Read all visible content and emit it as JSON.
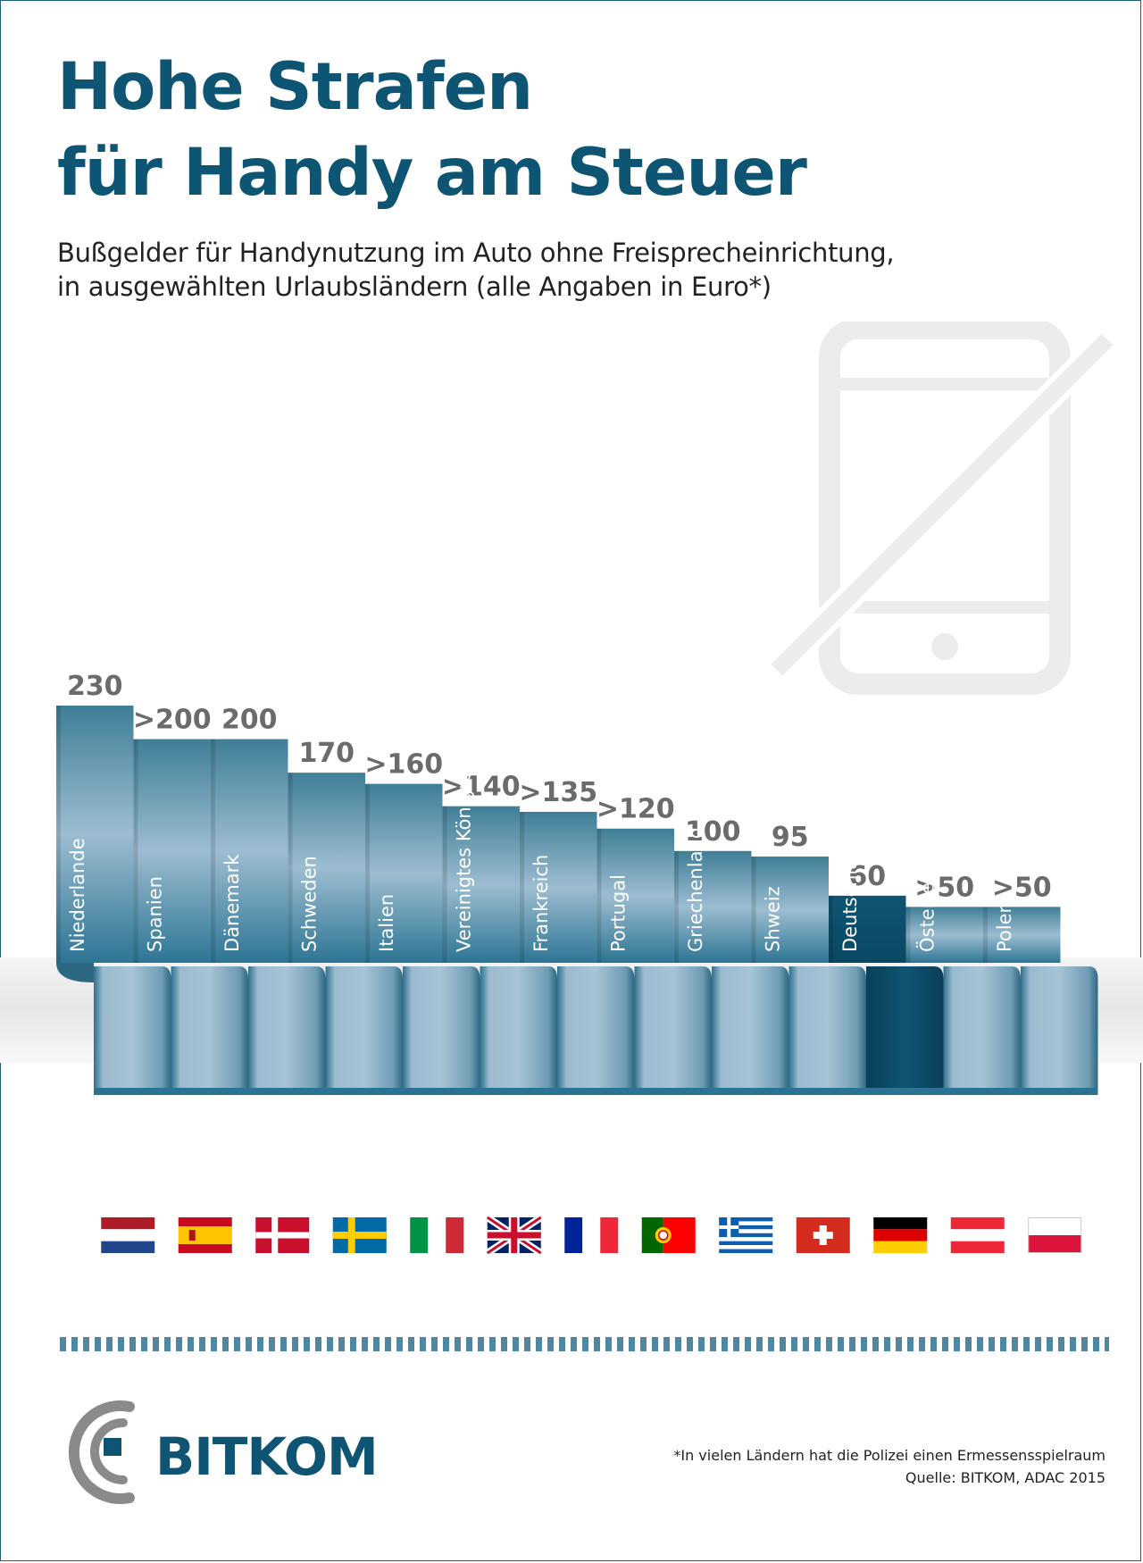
{
  "header": {
    "title_line1": "Hohe Strafen",
    "title_line2": "für Handy am Steuer",
    "subtitle_line1": "Bußgelder für Handynutzung im Auto ohne Freisprecheinrichtung,",
    "subtitle_line2": "in ausgewählten Urlaubsländern (alle Angaben in Euro*)"
  },
  "colors": {
    "title": "#0e5573",
    "bar_top": "#3f7e97",
    "bar_mid": "#9dbdd1",
    "bar_bottom": "#2d7594",
    "highlight": "#0e5573",
    "value_label": "#6b6b6b",
    "icon": "#ececec"
  },
  "chart_data": {
    "type": "bar",
    "title": "Hohe Strafen für Handy am Steuer",
    "ylabel": "Euro",
    "ylim": [
      0,
      230
    ],
    "categories": [
      "Niederlande",
      "Spanien",
      "Dänemark",
      "Schweden",
      "Italien",
      "Vereinigtes Königreich",
      "Frankreich",
      "Portugal",
      "Griechenland",
      "Shweiz",
      "Deutschland",
      "Österreich",
      "Polen"
    ],
    "values": [
      230,
      200,
      200,
      170,
      160,
      140,
      135,
      120,
      100,
      95,
      60,
      50,
      50
    ],
    "value_labels": [
      "230",
      ">200",
      "200",
      "170",
      ">160",
      ">140",
      ">135",
      ">120",
      "100",
      "95",
      "60",
      ">50",
      ">50"
    ],
    "flags": [
      "flag-netherlands",
      "flag-spain",
      "flag-denmark",
      "flag-sweden",
      "flag-italy",
      "flag-uk",
      "flag-france",
      "flag-portugal",
      "flag-greece",
      "flag-switzerland",
      "flag-germany",
      "flag-austria",
      "flag-poland"
    ],
    "highlight": "Deutschland",
    "background_icon": "no-phone-icon"
  },
  "footer": {
    "note": "*In vielen Ländern hat die Polizei einen Ermessensspielraum",
    "source": "Quelle: BITKOM, ADAC 2015",
    "logo": "BITKOM",
    "logo_icon": "bitkom-logo-icon"
  }
}
